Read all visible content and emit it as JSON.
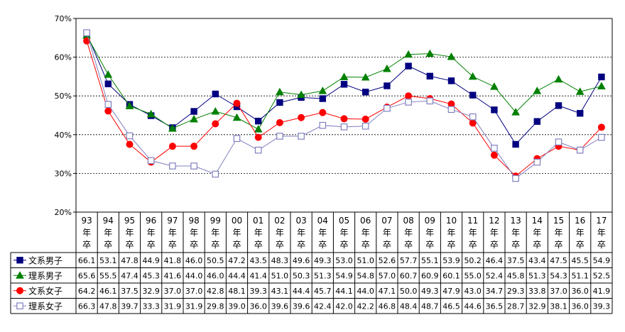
{
  "chart_data": {
    "type": "line",
    "title": "",
    "xlabel": "",
    "ylabel": "",
    "ylim": [
      20,
      70
    ],
    "y_ticks": [
      "20%",
      "30%",
      "40%",
      "50%",
      "60%",
      "70%"
    ],
    "grid": "horizontal dashed",
    "legend": "data-table-left",
    "categories": [
      [
        "93",
        "年",
        "卒"
      ],
      [
        "94",
        "年",
        "卒"
      ],
      [
        "95",
        "年",
        "卒"
      ],
      [
        "96",
        "年",
        "卒"
      ],
      [
        "97",
        "年",
        "卒"
      ],
      [
        "98",
        "年",
        "卒"
      ],
      [
        "99",
        "年",
        "卒"
      ],
      [
        "00",
        "年",
        "卒"
      ],
      [
        "01",
        "年",
        "卒"
      ],
      [
        "02",
        "年",
        "卒"
      ],
      [
        "03",
        "年",
        "卒"
      ],
      [
        "04",
        "年",
        "卒"
      ],
      [
        "05",
        "年",
        "卒"
      ],
      [
        "06",
        "年",
        "卒"
      ],
      [
        "07",
        "年",
        "卒"
      ],
      [
        "08",
        "年",
        "卒"
      ],
      [
        "09",
        "年",
        "卒"
      ],
      [
        "10",
        "年",
        "卒"
      ],
      [
        "11",
        "年",
        "卒"
      ],
      [
        "12",
        "年",
        "卒"
      ],
      [
        "13",
        "年",
        "卒"
      ],
      [
        "14",
        "年",
        "卒"
      ],
      [
        "15",
        "年",
        "卒"
      ],
      [
        "16",
        "年",
        "卒"
      ],
      [
        "17",
        "年",
        "卒"
      ]
    ],
    "series": [
      {
        "name": "文系男子",
        "color": "#000080",
        "marker": "square-filled",
        "values": [
          66.1,
          53.1,
          47.8,
          44.9,
          41.8,
          46.0,
          50.5,
          47.2,
          43.5,
          48.3,
          49.6,
          49.3,
          53.0,
          51.0,
          52.6,
          57.7,
          55.1,
          53.9,
          50.2,
          46.4,
          37.5,
          43.4,
          47.5,
          45.5,
          54.9
        ],
        "labels": [
          "66.1",
          "53.1",
          "47.8",
          "44.9",
          "41.8",
          "46.0",
          "50.5",
          "47.2",
          "43.5",
          "48.3",
          "49.6",
          "49.3",
          "53.0",
          "51.0",
          "52.6",
          "57.7",
          "55.1",
          "53.9",
          "50.2",
          "46.4",
          "37.5",
          "43.4",
          "47.5",
          "45.5",
          "54.9"
        ]
      },
      {
        "name": "理系男子",
        "color": "#008000",
        "marker": "triangle-filled",
        "values": [
          65.6,
          55.5,
          47.4,
          45.3,
          41.6,
          44.0,
          46.0,
          44.4,
          41.4,
          51.0,
          50.3,
          51.3,
          54.9,
          54.8,
          57.0,
          60.7,
          60.9,
          60.1,
          55.0,
          52.4,
          45.8,
          51.3,
          54.3,
          51.1,
          52.5
        ],
        "labels": [
          "65.6",
          "55.5",
          "47.4",
          "45.3",
          "41.6",
          "44.0",
          "46.0",
          "44.4",
          "41.4",
          "51.0",
          "50.3",
          "51.3",
          "54.9",
          "54.8",
          "57.0",
          "60.7",
          "60.9",
          "60.1",
          "55.0",
          "52.4",
          "45.8",
          "51.3",
          "54.3",
          "51.1",
          "52.5"
        ]
      },
      {
        "name": "文系女子",
        "color": "#ff0000",
        "marker": "circle-filled",
        "values": [
          64.2,
          46.1,
          37.5,
          32.9,
          37.0,
          37.0,
          42.8,
          48.1,
          39.3,
          43.1,
          44.4,
          45.7,
          44.1,
          44.0,
          47.1,
          50.0,
          49.3,
          47.9,
          43.0,
          34.7,
          29.3,
          33.8,
          37.0,
          36.0,
          41.9
        ],
        "labels": [
          "64.2",
          "46.1",
          "37.5",
          "32.9",
          "37.0",
          "37.0",
          "42.8",
          "48.1",
          "39.3",
          "43.1",
          "44.4",
          "45.7",
          "44.1",
          "44.0",
          "47.1",
          "50.0",
          "49.3",
          "47.9",
          "43.0",
          "34.7",
          "29.3",
          "33.8",
          "37.0",
          "36.0",
          "41.9"
        ]
      },
      {
        "name": "理系女子",
        "color": "#8080c0",
        "marker": "square-open",
        "values": [
          66.3,
          47.8,
          39.7,
          33.3,
          31.9,
          31.9,
          29.8,
          39.0,
          36.0,
          39.6,
          39.6,
          42.4,
          42.0,
          42.2,
          46.8,
          48.4,
          48.7,
          46.5,
          44.6,
          36.5,
          28.7,
          32.9,
          38.1,
          36.0,
          39.3
        ],
        "labels": [
          "66.3",
          "47.8",
          "39.7",
          "33.3",
          "31.9",
          "31.9",
          "29.8",
          "39.0",
          "36.0",
          "39.6",
          "39.6",
          "42.4",
          "42.0",
          "42.2",
          "46.8",
          "48.4",
          "48.7",
          "46.5",
          "44.6",
          "36.5",
          "28.7",
          "32.9",
          "38.1",
          "36.0",
          "39.3"
        ]
      }
    ]
  }
}
